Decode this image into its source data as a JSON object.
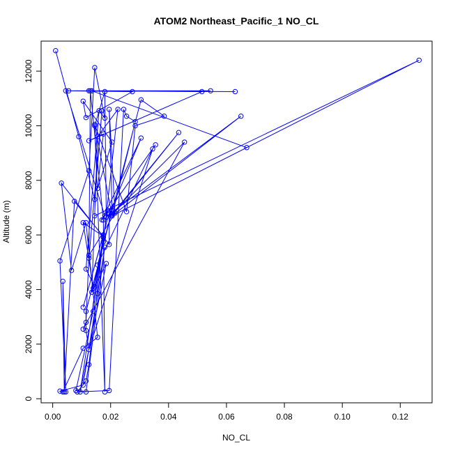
{
  "chart_data": {
    "type": "line",
    "title": "ATOM2 Northeast_Pacific_1 NO_CL",
    "xlabel": "NO_CL",
    "ylabel": "Altitude (m)",
    "xlim": [
      -0.004,
      0.131
    ],
    "ylim": [
      -150,
      13100
    ],
    "x_ticks": [
      0.0,
      0.02,
      0.04,
      0.06,
      0.08,
      0.1,
      0.12
    ],
    "x_tick_labels": [
      "0.00",
      "0.02",
      "0.04",
      "0.06",
      "0.08",
      "0.10",
      "0.12"
    ],
    "y_ticks": [
      0,
      2000,
      4000,
      6000,
      8000,
      10000,
      12000
    ],
    "y_tick_labels": [
      "0",
      "2000",
      "4000",
      "6000",
      "8000",
      "10000",
      "12000"
    ],
    "grid": false,
    "legend": "none",
    "series_color": "#0000ff",
    "series": [
      {
        "x": [
          0.001,
          0.009,
          0.0145,
          0.017,
          0.0125,
          0.013,
          0.0175,
          0.018,
          0.0145,
          0.018,
          0.0185,
          0.019,
          0.0145,
          0.0115,
          0.016,
          0.018,
          0.0145,
          0.0125,
          0.0025,
          0.0045,
          0.0035,
          0.004,
          0.0075,
          0.0175,
          0.0105,
          0.014,
          0.0175,
          0.0225,
          0.0155,
          0.0135,
          0.0185,
          0.0095,
          0.0175,
          0.0105,
          0.0195,
          0.0195,
          0.003,
          0.0065,
          0.0115,
          0.0155,
          0.0105,
          0.0035,
          0.0025,
          0.0105,
          0.0155,
          0.018,
          0.0115,
          0.008,
          0.014,
          0.0175,
          0.0125,
          0.0115,
          0.0085,
          0.0195,
          0.0245,
          0.0255,
          0.0285,
          0.0205,
          0.0145,
          0.0255,
          0.0285,
          0.0385,
          0.0305,
          0.0115,
          0.0115,
          0.0125,
          0.0345,
          0.0155,
          0.0205,
          0.0195,
          0.0215,
          0.0125,
          0.0115,
          0.0105,
          0.0455,
          0.0205,
          0.0435,
          0.0205,
          0.065,
          0.0195,
          0.0305,
          0.017,
          0.0355,
          0.018,
          0.0045,
          0.0275,
          0.0115,
          0.0105,
          0.0205,
          0.0155,
          0.0175,
          0.0125,
          0.0515,
          0.0125,
          0.063,
          0.0055,
          0.0545,
          0.0135,
          0.067,
          0.0205,
          0.1265,
          0.0145
        ],
        "y": [
          12750,
          9600,
          7300,
          10550,
          5150,
          11280,
          6550,
          250,
          10000,
          11250,
          6650,
          6900,
          4100,
          4750,
          10550,
          10280,
          12130,
          8350,
          5050,
          250,
          4300,
          250,
          7230,
          5950,
          6450,
          4050,
          5750,
          10600,
          9600,
          3900,
          4950,
          250,
          6000,
          3350,
          6800,
          5650,
          7900,
          4700,
          6450,
          2250,
          1850,
          250,
          280,
          500,
          3850,
          5550,
          250,
          300,
          3200,
          5900,
          1250,
          650,
          250,
          300,
          10600,
          10350,
          10150,
          6700,
          10050,
          6850,
          10000,
          10350,
          10950,
          3200,
          2500,
          1800,
          9150,
          4900,
          6900,
          10600,
          6800,
          5250,
          2800,
          2550,
          9400,
          6750,
          9750,
          6700,
          10350,
          6750,
          9550,
          6550,
          9300,
          6700,
          11280,
          11250,
          10300,
          10900,
          9400,
          7700,
          9700,
          9450,
          11250,
          11280,
          11250,
          11280,
          11280,
          11280,
          9200,
          6700,
          12400,
          6700
        ]
      }
    ]
  }
}
